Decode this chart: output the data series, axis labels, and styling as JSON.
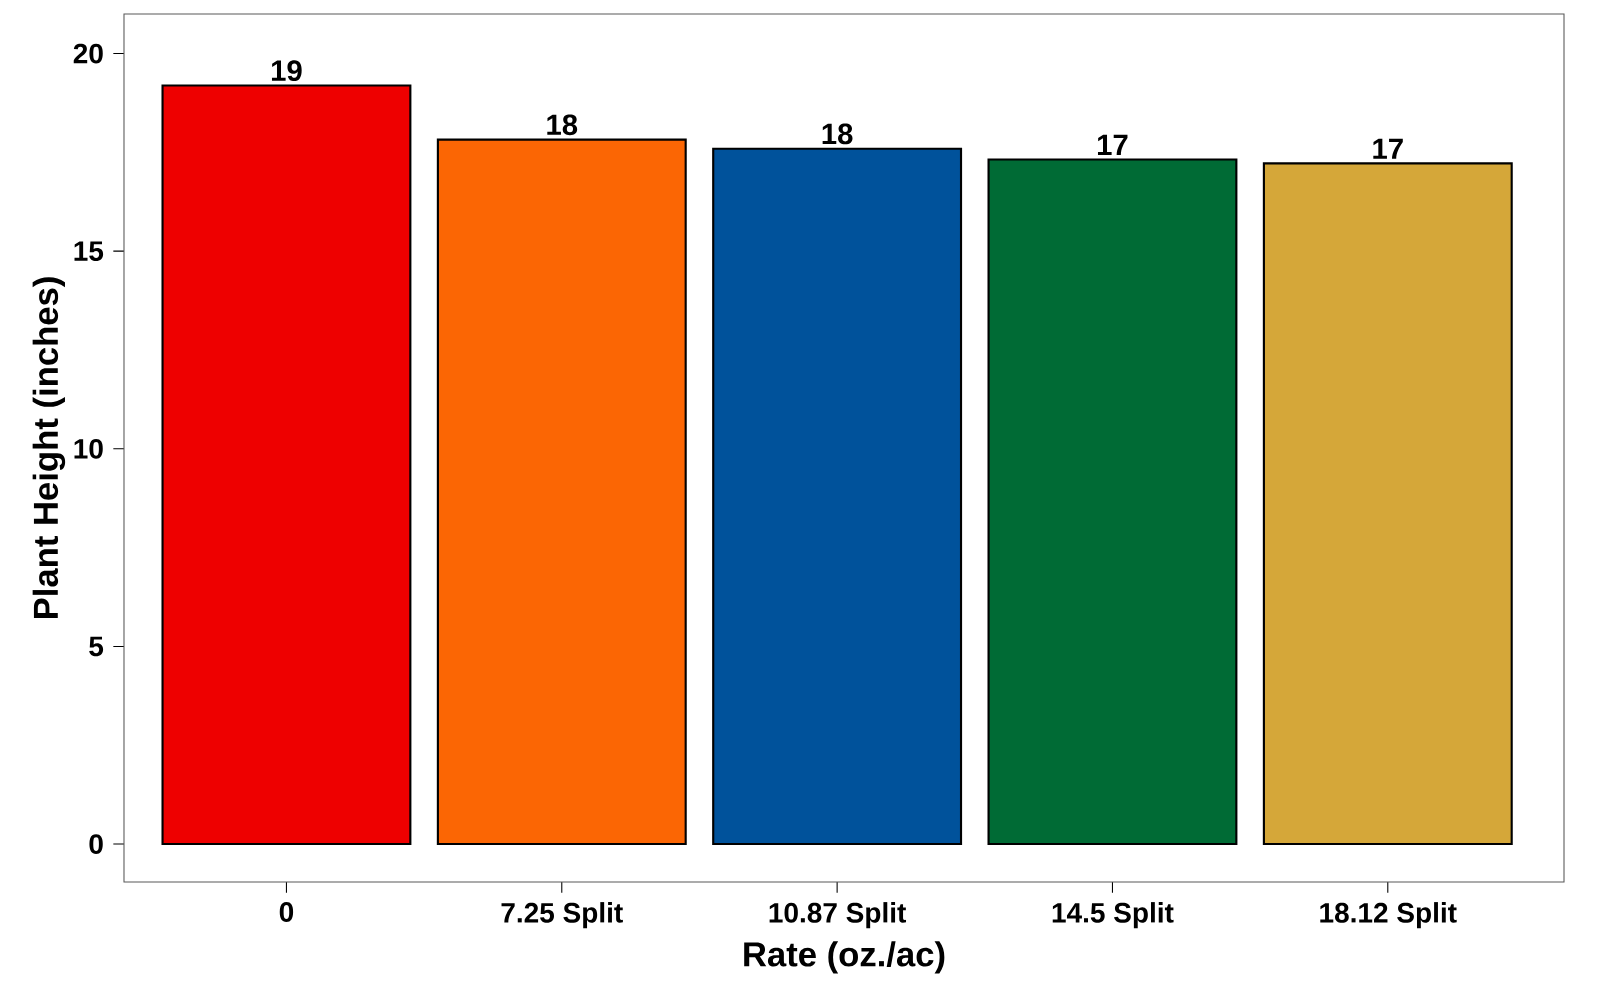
{
  "chart_data": {
    "type": "bar",
    "xlabel": "Rate (oz./ac)",
    "ylabel": "Plant Height (inches)",
    "categories": [
      "0",
      "7.25 Split",
      "10.87 Split",
      "14.5 Split",
      "18.12 Split"
    ],
    "values": [
      19.19,
      17.82,
      17.59,
      17.32,
      17.22
    ],
    "value_labels": [
      "19",
      "18",
      "18",
      "17",
      "17"
    ],
    "colors": [
      "#ee0000",
      "#fb6604",
      "#00529b",
      "#006b35",
      "#d5a739"
    ],
    "ylim": [
      -0.96,
      21
    ],
    "yticks": [
      0,
      5,
      10,
      15,
      20
    ],
    "grid": false
  }
}
